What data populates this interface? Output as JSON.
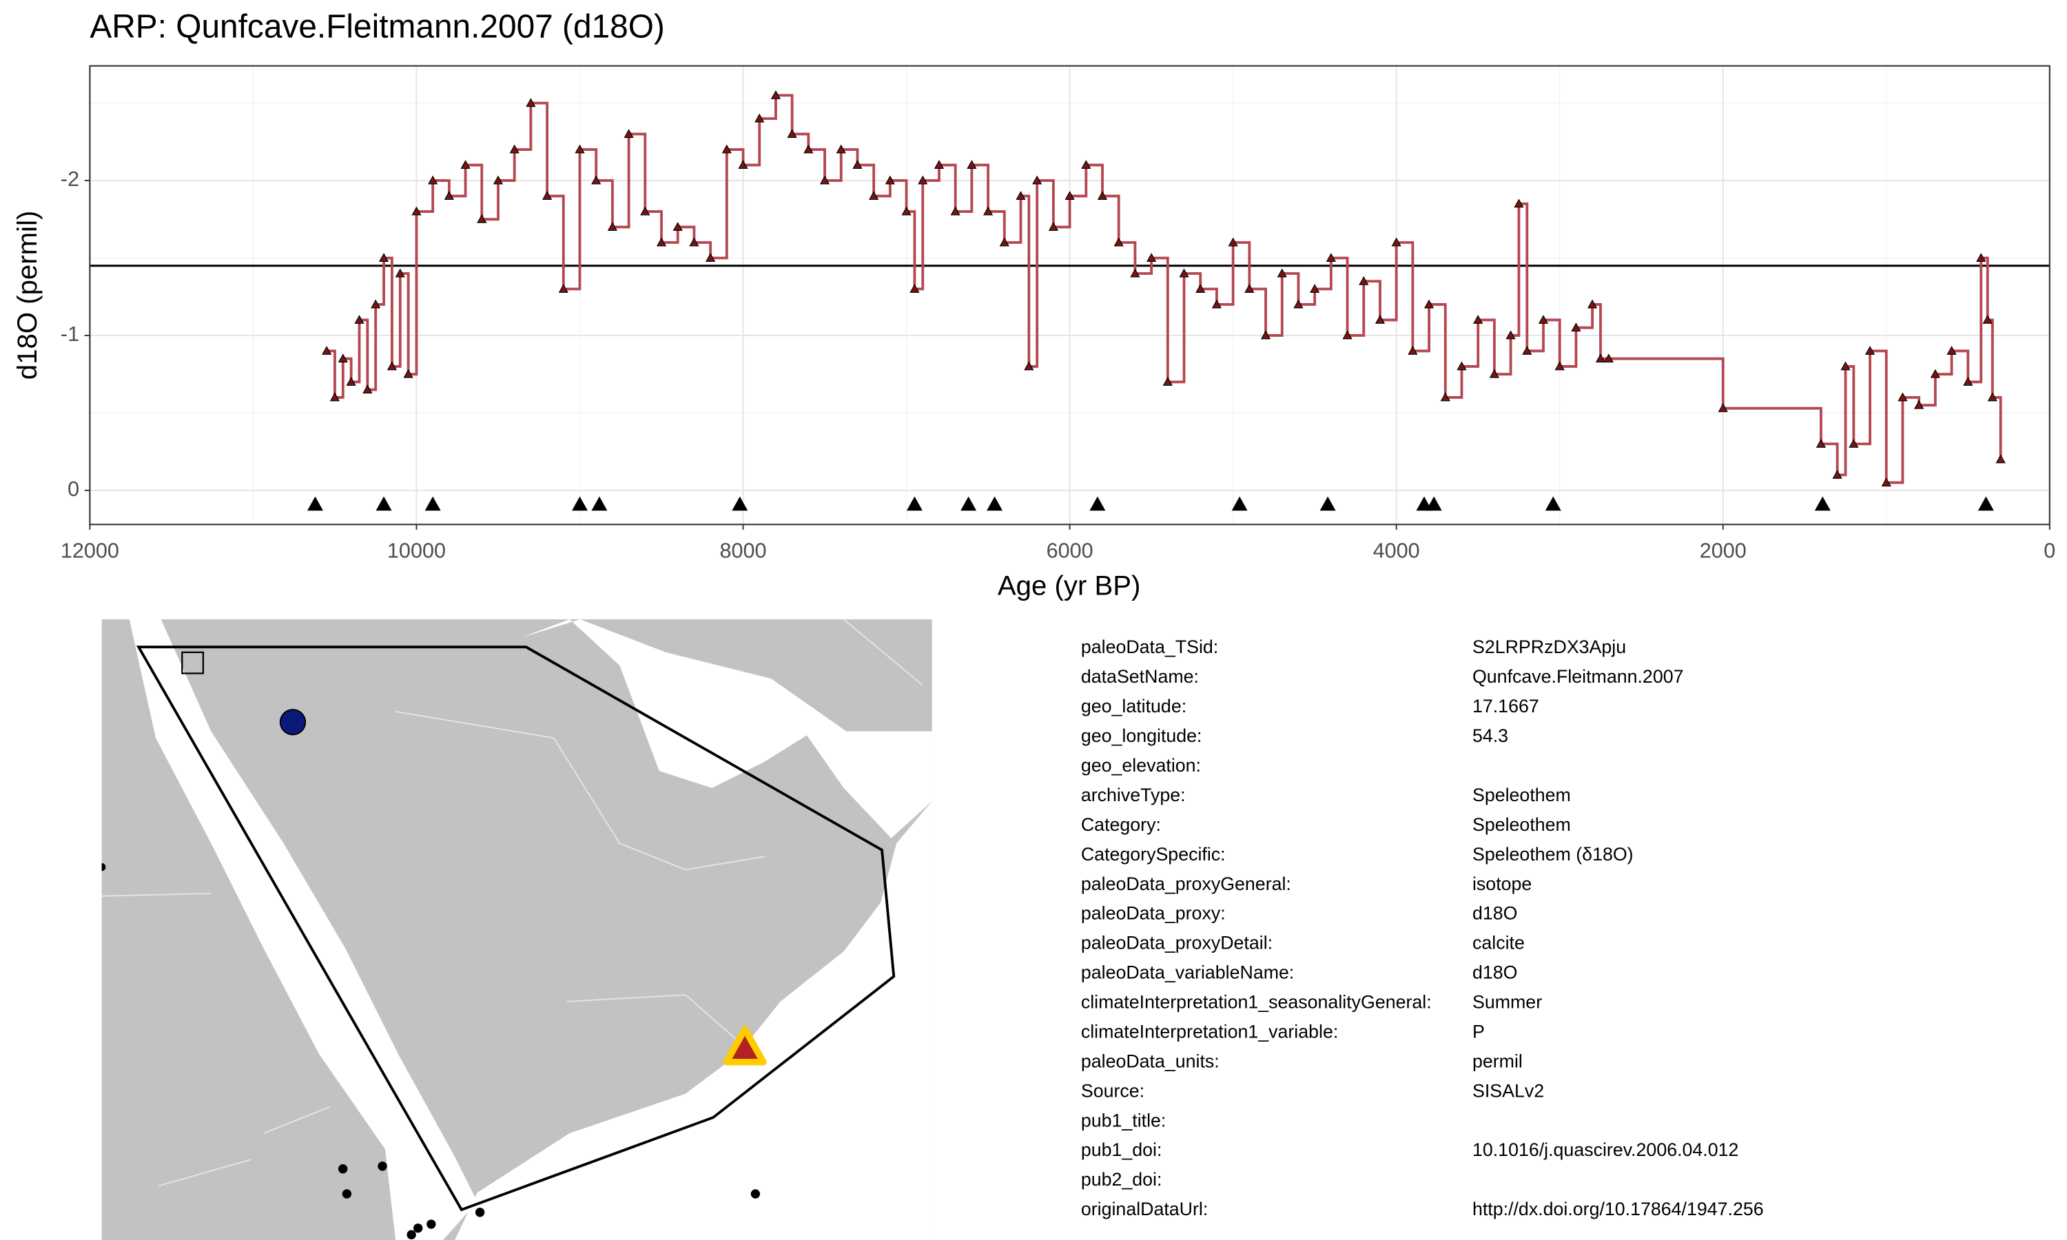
{
  "chart_data": {
    "type": "step",
    "title": "ARP: Qunfcave.Fleitmann.2007 (d18O)",
    "x_label": "Age (yr BP)",
    "y_label": "d18O (permil)",
    "xlim": [
      12000,
      0
    ],
    "xticks": [
      12000,
      10000,
      8000,
      6000,
      4000,
      2000,
      0
    ],
    "xminorticks": [
      11000,
      9000,
      7000,
      5000,
      3000,
      1000
    ],
    "ylim": [
      0.22,
      -2.74
    ],
    "yticks": [
      -2,
      -1,
      0
    ],
    "yminorticks": [
      -2.5,
      -1.5,
      -0.5
    ],
    "grid": true,
    "series": [
      {
        "name": "d18O",
        "color": "#b5474f",
        "marker_color": "#7a1414",
        "x": [
          10550,
          10500,
          10450,
          10400,
          10350,
          10300,
          10250,
          10200,
          10150,
          10100,
          10050,
          10000,
          9900,
          9800,
          9700,
          9600,
          9500,
          9400,
          9300,
          9200,
          9100,
          9000,
          8900,
          8800,
          8700,
          8600,
          8500,
          8400,
          8300,
          8200,
          8100,
          8000,
          7900,
          7800,
          7700,
          7600,
          7500,
          7400,
          7300,
          7200,
          7100,
          7000,
          6950,
          6900,
          6800,
          6700,
          6600,
          6500,
          6400,
          6300,
          6250,
          6200,
          6100,
          6000,
          5900,
          5800,
          5700,
          5600,
          5500,
          5400,
          5300,
          5200,
          5100,
          5000,
          4900,
          4800,
          4700,
          4600,
          4500,
          4400,
          4300,
          4200,
          4100,
          4000,
          3900,
          3800,
          3700,
          3600,
          3500,
          3400,
          3300,
          3250,
          3200,
          3100,
          3000,
          2900,
          2800,
          2750,
          2700,
          2000,
          1400,
          1300,
          1250,
          1200,
          1100,
          1000,
          900,
          800,
          700,
          600,
          500,
          420,
          380,
          350,
          300
        ],
        "values": [
          -0.9,
          -0.6,
          -0.85,
          -0.7,
          -1.1,
          -0.65,
          -1.2,
          -1.5,
          -0.8,
          -1.4,
          -0.75,
          -1.8,
          -2.0,
          -1.9,
          -2.1,
          -1.75,
          -2.0,
          -2.2,
          -2.5,
          -1.9,
          -1.3,
          -2.2,
          -2.0,
          -1.7,
          -2.3,
          -1.8,
          -1.6,
          -1.7,
          -1.6,
          -1.5,
          -2.2,
          -2.1,
          -2.4,
          -2.55,
          -2.3,
          -2.2,
          -2.0,
          -2.2,
          -2.1,
          -1.9,
          -2.0,
          -1.8,
          -1.3,
          -2.0,
          -2.1,
          -1.8,
          -2.1,
          -1.8,
          -1.6,
          -1.9,
          -0.8,
          -2.0,
          -1.7,
          -1.9,
          -2.1,
          -1.9,
          -1.6,
          -1.4,
          -1.5,
          -0.7,
          -1.4,
          -1.3,
          -1.2,
          -1.6,
          -1.3,
          -1.0,
          -1.4,
          -1.2,
          -1.3,
          -1.5,
          -1.0,
          -1.35,
          -1.1,
          -1.6,
          -0.9,
          -1.2,
          -0.6,
          -0.8,
          -1.1,
          -0.75,
          -1.0,
          -1.85,
          -0.9,
          -1.1,
          -0.8,
          -1.05,
          -1.2,
          -0.85,
          -0.85,
          -0.53,
          -0.3,
          -0.1,
          -0.8,
          -0.3,
          -0.9,
          -0.05,
          -0.6,
          -0.55,
          -0.75,
          -0.9,
          -0.7,
          -1.5,
          -1.1,
          -0.6,
          -0.2
        ]
      }
    ],
    "hline": -1.45,
    "chron_ages": [
      10620,
      10200,
      9900,
      9000,
      8880,
      8020,
      6950,
      6620,
      6460,
      5830,
      4960,
      4420,
      3830,
      3770,
      3040,
      1390,
      390
    ],
    "chron_y": 0.09
  },
  "metadata": {
    "rows": [
      {
        "key": "paleoData_TSid:",
        "value": "S2LRPRzDX3Apju"
      },
      {
        "key": "dataSetName:",
        "value": "Qunfcave.Fleitmann.2007"
      },
      {
        "key": "geo_latitude:",
        "value": "17.1667"
      },
      {
        "key": "geo_longitude:",
        "value": "54.3"
      },
      {
        "key": "geo_elevation:"
      },
      {
        "key": "archiveType:",
        "value": "Speleothem"
      },
      {
        "key": "Category:",
        "value": "Speleothem"
      },
      {
        "key": "CategorySpecific:",
        "value": "Speleothem (δ18O)"
      },
      {
        "key": "paleoData_proxyGeneral:",
        "value": "isotope"
      },
      {
        "key": "paleoData_proxy:",
        "value": "d18O"
      },
      {
        "key": "paleoData_proxyDetail:",
        "value": "calcite"
      },
      {
        "key": "paleoData_variableName:",
        "value": "d18O"
      },
      {
        "key": "climateInterpretation1_seasonalityGeneral:",
        "value": "Summer"
      },
      {
        "key": "climateInterpretation1_variable:",
        "value": "P"
      },
      {
        "key": "paleoData_units:",
        "value": "permil"
      },
      {
        "key": "Source:",
        "value": "SISALv2"
      },
      {
        "key": "pub1_title:"
      },
      {
        "key": "pub1_doi:",
        "value": "10.1016/j.quascirev.2006.04.012"
      },
      {
        "key": "pub2_doi:"
      },
      {
        "key": "originalDataUrl:",
        "value": "http://dx.doi.org/10.17864/1947.256"
      }
    ]
  }
}
